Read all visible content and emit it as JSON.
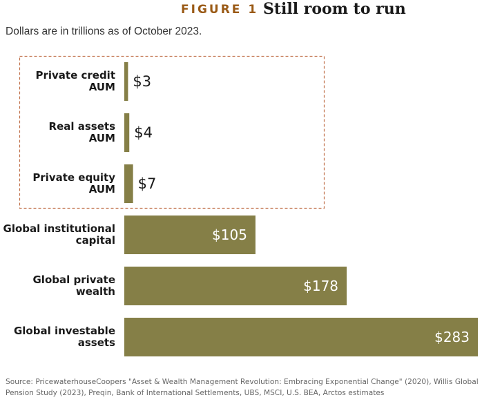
{
  "figure": {
    "label": "FIGURE 1",
    "title": "Still room to run",
    "subtitle": "Dollars are in trillions as of October 2023.",
    "source": "Source: PricewaterhouseCoopers \"Asset & Wealth Management Revolution: Embracing Exponential Change\" (2020), Willis Global Pension Study (2023), Preqin, Bank of International Settlements, UBS, MSCI, U.S. BEA, Arctos estimates"
  },
  "colors": {
    "bar": "#857f47",
    "label_accent": "#9a5a16",
    "highlight_box": "#c0704a"
  },
  "chart_data": {
    "type": "bar",
    "orientation": "horizontal",
    "unit": "trillions of dollars",
    "categories": [
      [
        "Private credit",
        "AUM"
      ],
      [
        "Real assets",
        "AUM"
      ],
      [
        "Private equity",
        "AUM"
      ],
      [
        "Global institutional",
        "capital"
      ],
      [
        "Global private",
        "wealth"
      ],
      [
        "Global investable",
        "assets"
      ]
    ],
    "values": [
      3,
      4,
      7,
      105,
      178,
      283
    ],
    "value_labels": [
      "$3",
      "$4",
      "$7",
      "$105",
      "$178",
      "$283"
    ],
    "highlighted_categories": [
      0,
      1,
      2
    ],
    "grid": false,
    "xlim": [
      0,
      283
    ]
  }
}
